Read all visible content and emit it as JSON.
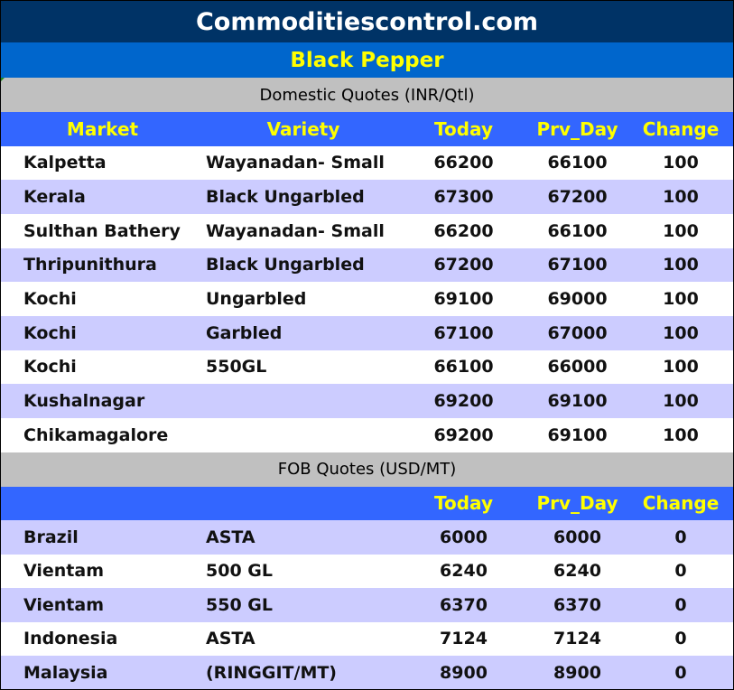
{
  "title": "Commoditiescontrol.com",
  "commodity": "Black Pepper",
  "colors": {
    "title_bg": "#003366",
    "subtitle_bg": "#0066cc",
    "section_bg": "#c0c0c0",
    "header_bg": "#3366ff",
    "header_text": "#ffff00",
    "alt_row": "#ccccff"
  },
  "domestic": {
    "section": "Domestic Quotes (INR/Qtl)",
    "headers": [
      "Market",
      "Variety",
      "Today",
      "Prv_Day",
      "Change"
    ],
    "rows": [
      [
        "Kalpetta",
        "Wayanadan- Small",
        "66200",
        "66100",
        "100"
      ],
      [
        "Kerala",
        "Black Ungarbled",
        "67300",
        "67200",
        "100"
      ],
      [
        "Sulthan Bathery",
        "Wayanadan- Small",
        "66200",
        "66100",
        "100"
      ],
      [
        "Thripunithura",
        "Black Ungarbled",
        "67200",
        "67100",
        "100"
      ],
      [
        "Kochi",
        "Ungarbled",
        "69100",
        "69000",
        "100"
      ],
      [
        "Kochi",
        "Garbled",
        "67100",
        "67000",
        "100"
      ],
      [
        "Kochi",
        "550GL",
        "66100",
        "66000",
        "100"
      ],
      [
        "Kushalnagar",
        "",
        "69200",
        "69100",
        "100"
      ],
      [
        "Chikamagalore",
        "",
        "69200",
        "69100",
        "100"
      ]
    ]
  },
  "fob": {
    "section": "FOB Quotes (USD/MT)",
    "headers": [
      "",
      "",
      "Today",
      "Prv_Day",
      "Change"
    ],
    "rows": [
      [
        "Brazil",
        "ASTA",
        "6000",
        "6000",
        "0"
      ],
      [
        "Vientam",
        "500 GL",
        "6240",
        "6240",
        "0"
      ],
      [
        "Vientam",
        "550 GL",
        "6370",
        "6370",
        "0"
      ],
      [
        "Indonesia",
        "ASTA",
        "7124",
        "7124",
        "0"
      ],
      [
        "Malaysia",
        "(RINGGIT/MT)",
        "8900",
        "8900",
        "0"
      ]
    ]
  }
}
